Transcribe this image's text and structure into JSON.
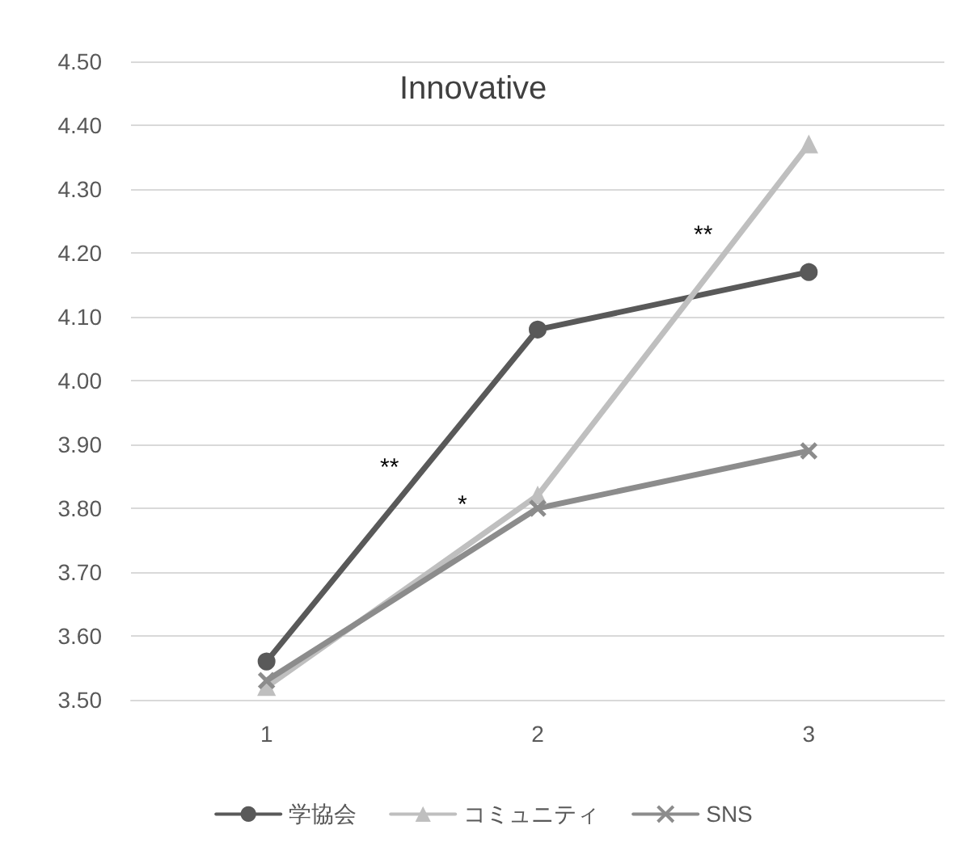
{
  "chart_data": {
    "type": "line",
    "title": "Innovative",
    "categories": [
      "1",
      "2",
      "3"
    ],
    "series": [
      {
        "name": "学協会",
        "color": "#595959",
        "marker": "circle",
        "values": [
          3.56,
          4.08,
          4.17
        ]
      },
      {
        "name": "コミュニティ",
        "color": "#bfbfbf",
        "marker": "triangle",
        "values": [
          3.52,
          3.82,
          4.37
        ]
      },
      {
        "name": "SNS",
        "color": "#8c8c8c",
        "marker": "cross",
        "values": [
          3.53,
          3.8,
          3.89
        ]
      }
    ],
    "ylim": [
      3.5,
      4.5
    ],
    "yticks": [
      {
        "value": 3.5,
        "label": "3.50"
      },
      {
        "value": 3.6,
        "label": "3.60"
      },
      {
        "value": 3.7,
        "label": "3.70"
      },
      {
        "value": 3.8,
        "label": "3.80"
      },
      {
        "value": 3.9,
        "label": "3.90"
      },
      {
        "value": 4.0,
        "label": "4.00"
      },
      {
        "value": 4.1,
        "label": "4.10"
      },
      {
        "value": 4.2,
        "label": "4.20"
      },
      {
        "value": 4.3,
        "label": "4.30"
      },
      {
        "value": 4.4,
        "label": "4.40"
      },
      {
        "value": 4.5,
        "label": "4.50"
      }
    ],
    "grid": "y",
    "legend": "bottom",
    "line_style": "solid",
    "annotations": [
      "**",
      "*",
      "**"
    ]
  }
}
